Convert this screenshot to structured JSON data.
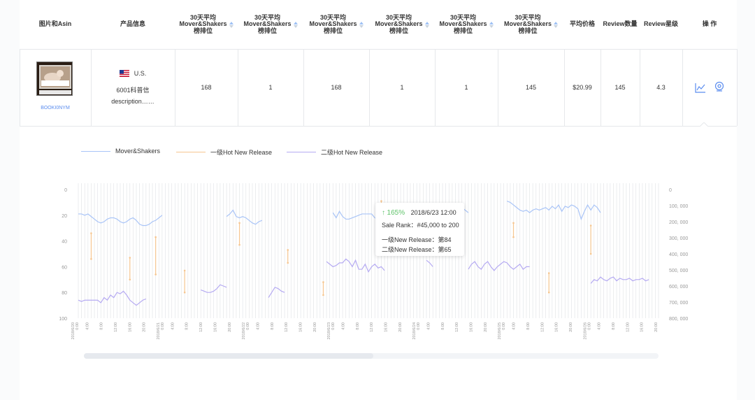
{
  "header": {
    "cols": [
      "图片和Asin",
      "产品信息",
      "30天平均\nMover&Shakers\n榜排位",
      "30天平均\nMover&Shakers\n榜排位",
      "30天平均\nMover&Shakers\n榜排位",
      "30天平均\nMover&Shakers\n榜排位",
      "30天平均\nMover&Shakers\n榜排位",
      "30天平均\nMover&Shakers\n榜排位",
      "平均价格",
      "Review数量",
      "Review星级",
      "操 作"
    ]
  },
  "row": {
    "asin": "BOOKI0NYM",
    "country": "U.S.",
    "product_line1": "6001科普信",
    "product_line2": "description……",
    "ranks": [
      "168",
      "1",
      "168",
      "1",
      "1",
      "145"
    ],
    "price": "$20.99",
    "review_count": "145",
    "rating": "4.3"
  },
  "actions": {
    "trend_icon": "line-chart-icon",
    "locate_icon": "location-pin-icon"
  },
  "legend": [
    {
      "name": "Mover&Shakers",
      "color": "#a9c4f7"
    },
    {
      "name": "一级Hot New Release",
      "color": "#f6c690"
    },
    {
      "name": "二级Hot New Release",
      "color": "#b5aaf2"
    }
  ],
  "tooltip": {
    "change": "165%",
    "date": "2018/6/23 12:00",
    "sale_rank": "Sale Rank：#45,000 to 200",
    "level1": "一级New Release：第84",
    "level2": "二级New Release：第65"
  },
  "chart_data": {
    "type": "line",
    "ylim_left": [
      0,
      100
    ],
    "left_ticks": [
      "0",
      "20",
      "40",
      "60",
      "80",
      "100"
    ],
    "ylim_right": [
      0,
      800000
    ],
    "right_ticks": [
      "0",
      "100, 000",
      "200, 000",
      "300, 000",
      "400, 000",
      "500, 000",
      "600, 000",
      "700, 000",
      "800, 000"
    ],
    "x_ticks": [
      "2018/6/20\n0:00",
      "4:00",
      "8:00",
      "12:00",
      "16:00",
      "20:00",
      "2018/6/21\n0:00",
      "4:00",
      "8:00",
      "12:00",
      "16:00",
      "20:00",
      "2018/6/22\n0:00",
      "4:00",
      "8:00",
      "12:00",
      "16:00",
      "20:00",
      "2018/6/23\n0:00",
      "4:00",
      "8:00",
      "12:00",
      "16:00",
      "20:00",
      "2018/6/24\n0:00",
      "4:00",
      "8:00",
      "12:00",
      "16:00",
      "20:00",
      "2018/6/25\n0:00",
      "4:00",
      "8:00",
      "12:00",
      "16:00",
      "20:00",
      "2018/6/26\n0:00",
      "4:00",
      "8:00",
      "12:00",
      "16:00",
      "20:00"
    ],
    "grid": true,
    "series": [
      {
        "name": "Mover&Shakers",
        "color": "#a9c4f7",
        "segments": [
          [
            [
              0,
              19
            ],
            [
              1,
              19
            ],
            [
              2,
              20
            ],
            [
              3,
              19
            ],
            [
              4,
              21
            ],
            [
              5,
              23
            ],
            [
              6,
              25
            ],
            [
              7,
              26
            ],
            [
              8,
              25
            ],
            [
              9,
              23
            ],
            [
              10,
              22
            ],
            [
              11,
              22
            ],
            [
              12,
              23
            ],
            [
              13,
              25
            ],
            [
              14,
              26
            ],
            [
              15,
              25
            ],
            [
              16,
              23
            ],
            [
              17,
              22
            ],
            [
              18,
              24
            ],
            [
              19,
              27
            ],
            [
              20,
              28
            ],
            [
              21,
              28
            ],
            [
              22,
              27
            ],
            [
              23,
              25
            ],
            [
              24,
              24
            ],
            [
              25,
              22
            ],
            [
              26,
              20
            ]
          ],
          [
            [
              46,
              21
            ],
            [
              47,
              19
            ],
            [
              48,
              16
            ],
            [
              49,
              21
            ],
            [
              50,
              22
            ],
            [
              51,
              21
            ],
            [
              52,
              22
            ],
            [
              53,
              24
            ],
            [
              54,
              26
            ],
            [
              55,
              27
            ],
            [
              56,
              25
            ],
            [
              57,
              24
            ]
          ],
          [
            [
              79,
              18
            ],
            [
              80,
              22
            ],
            [
              81,
              17
            ],
            [
              82,
              21
            ],
            [
              83,
              23
            ],
            [
              84,
              23
            ],
            [
              85,
              22
            ],
            [
              86,
              21
            ],
            [
              87,
              20
            ],
            [
              88,
              19
            ],
            [
              89,
              19
            ],
            [
              90,
              19
            ],
            [
              91,
              19
            ],
            [
              92,
              22
            ],
            [
              93,
              23
            ],
            [
              94,
              21
            ],
            [
              95,
              18
            ],
            [
              96,
              17
            ],
            [
              97,
              15
            ],
            [
              98,
              15
            ],
            [
              99,
              17
            ],
            [
              100,
              14
            ],
            [
              101,
              12
            ],
            [
              102,
              13
            ],
            [
              103,
              15
            ],
            [
              104,
              14
            ],
            [
              105,
              15
            ],
            [
              106,
              17
            ]
          ],
          [
            [
              113,
              11
            ],
            [
              114,
              12
            ],
            [
              115,
              14
            ],
            [
              116,
              13
            ],
            [
              117,
              12
            ],
            [
              118,
              14
            ],
            [
              119,
              14
            ],
            [
              120,
              16
            ],
            [
              121,
              18
            ]
          ],
          [
            [
              133,
              9
            ],
            [
              134,
              10
            ],
            [
              135,
              12
            ],
            [
              136,
              14
            ],
            [
              137,
              16
            ],
            [
              138,
              17
            ],
            [
              139,
              16
            ],
            [
              140,
              18
            ],
            [
              141,
              16
            ],
            [
              142,
              15
            ],
            [
              143,
              16
            ],
            [
              144,
              15
            ],
            [
              145,
              14
            ],
            [
              146,
              16
            ],
            [
              147,
              13
            ],
            [
              148,
              15
            ],
            [
              149,
              12
            ],
            [
              150,
              17
            ],
            [
              151,
              13
            ],
            [
              152,
              14
            ],
            [
              153,
              12
            ],
            [
              154,
              13
            ],
            [
              155,
              15
            ],
            [
              156,
              23
            ],
            [
              157,
              17
            ],
            [
              158,
              12
            ],
            [
              159,
              16
            ],
            [
              160,
              12
            ],
            [
              161,
              14
            ],
            [
              162,
              18
            ]
          ]
        ]
      },
      {
        "name": "一级Hot New Release",
        "color": "#f6c690",
        "ranges": [
          [
            4,
            34,
            54
          ],
          [
            16,
            53,
            70
          ],
          [
            24,
            37,
            66
          ],
          [
            33,
            63,
            80
          ],
          [
            50,
            26,
            43
          ],
          [
            65,
            47,
            57
          ],
          [
            76,
            72,
            82
          ],
          [
            94,
            9,
            16
          ],
          [
            135,
            26,
            37
          ],
          [
            146,
            65,
            80
          ],
          [
            159,
            28,
            50
          ]
        ]
      },
      {
        "name": "二级Hot New Release",
        "color": "#b5aaf2",
        "segments": [
          [
            [
              0,
              86
            ],
            [
              1,
              87
            ],
            [
              2,
              86
            ],
            [
              3,
              86
            ],
            [
              4,
              86
            ],
            [
              5,
              86
            ],
            [
              6,
              86
            ],
            [
              7,
              88
            ],
            [
              8,
              84
            ],
            [
              9,
              86
            ],
            [
              10,
              82
            ],
            [
              11,
              84
            ],
            [
              12,
              80
            ],
            [
              13,
              81
            ],
            [
              14,
              79
            ],
            [
              15,
              82
            ],
            [
              16,
              86
            ],
            [
              17,
              88
            ],
            [
              18,
              90
            ],
            [
              19,
              88
            ],
            [
              20,
              86
            ],
            [
              21,
              85
            ]
          ],
          [
            [
              38,
              78
            ],
            [
              39,
              79
            ],
            [
              40,
              80
            ],
            [
              41,
              80
            ],
            [
              42,
              79
            ],
            [
              43,
              77
            ],
            [
              44,
              74
            ],
            [
              45,
              75
            ],
            [
              46,
              76
            ]
          ],
          [
            [
              59,
              84
            ],
            [
              60,
              80
            ],
            [
              61,
              76
            ],
            [
              62,
              77
            ],
            [
              63,
              79
            ],
            [
              64,
              80
            ]
          ],
          [
            [
              77,
              56
            ],
            [
              78,
              58
            ],
            [
              79,
              60
            ],
            [
              80,
              59
            ],
            [
              81,
              57
            ],
            [
              82,
              57
            ],
            [
              83,
              54
            ],
            [
              84,
              56
            ],
            [
              85,
              60
            ],
            [
              86,
              55
            ],
            [
              87,
              62
            ],
            [
              88,
              62
            ],
            [
              89,
              58
            ],
            [
              90,
              64
            ],
            [
              91,
              60
            ],
            [
              92,
              58
            ],
            [
              93,
              61
            ],
            [
              94,
              60
            ],
            [
              95,
              63
            ]
          ],
          [
            [
              108,
              55
            ],
            [
              109,
              57
            ],
            [
              110,
              60
            ]
          ],
          [
            [
              121,
              62
            ],
            [
              122,
              58
            ],
            [
              123,
              56
            ],
            [
              124,
              60
            ],
            [
              125,
              62
            ],
            [
              126,
              58
            ],
            [
              127,
              56
            ],
            [
              128,
              60
            ],
            [
              129,
              63
            ],
            [
              130,
              60
            ],
            [
              131,
              58
            ],
            [
              132,
              56
            ],
            [
              133,
              57
            ],
            [
              134,
              60
            ],
            [
              135,
              62
            ],
            [
              136,
              60
            ],
            [
              137,
              58
            ],
            [
              138,
              62
            ],
            [
              139,
              60
            ],
            [
              140,
              60
            ]
          ],
          [
            [
              159,
              73
            ],
            [
              160,
              70
            ],
            [
              161,
              71
            ],
            [
              162,
              68
            ],
            [
              163,
              70
            ],
            [
              164,
              71
            ],
            [
              165,
              69
            ],
            [
              166,
              68
            ],
            [
              167,
              71
            ],
            [
              168,
              69
            ],
            [
              169,
              70
            ],
            [
              170,
              70
            ],
            [
              171,
              69
            ],
            [
              172,
              71
            ],
            [
              173,
              70
            ],
            [
              174,
              70
            ],
            [
              175,
              69
            ],
            [
              176,
              71
            ],
            [
              177,
              70
            ]
          ]
        ]
      }
    ]
  }
}
